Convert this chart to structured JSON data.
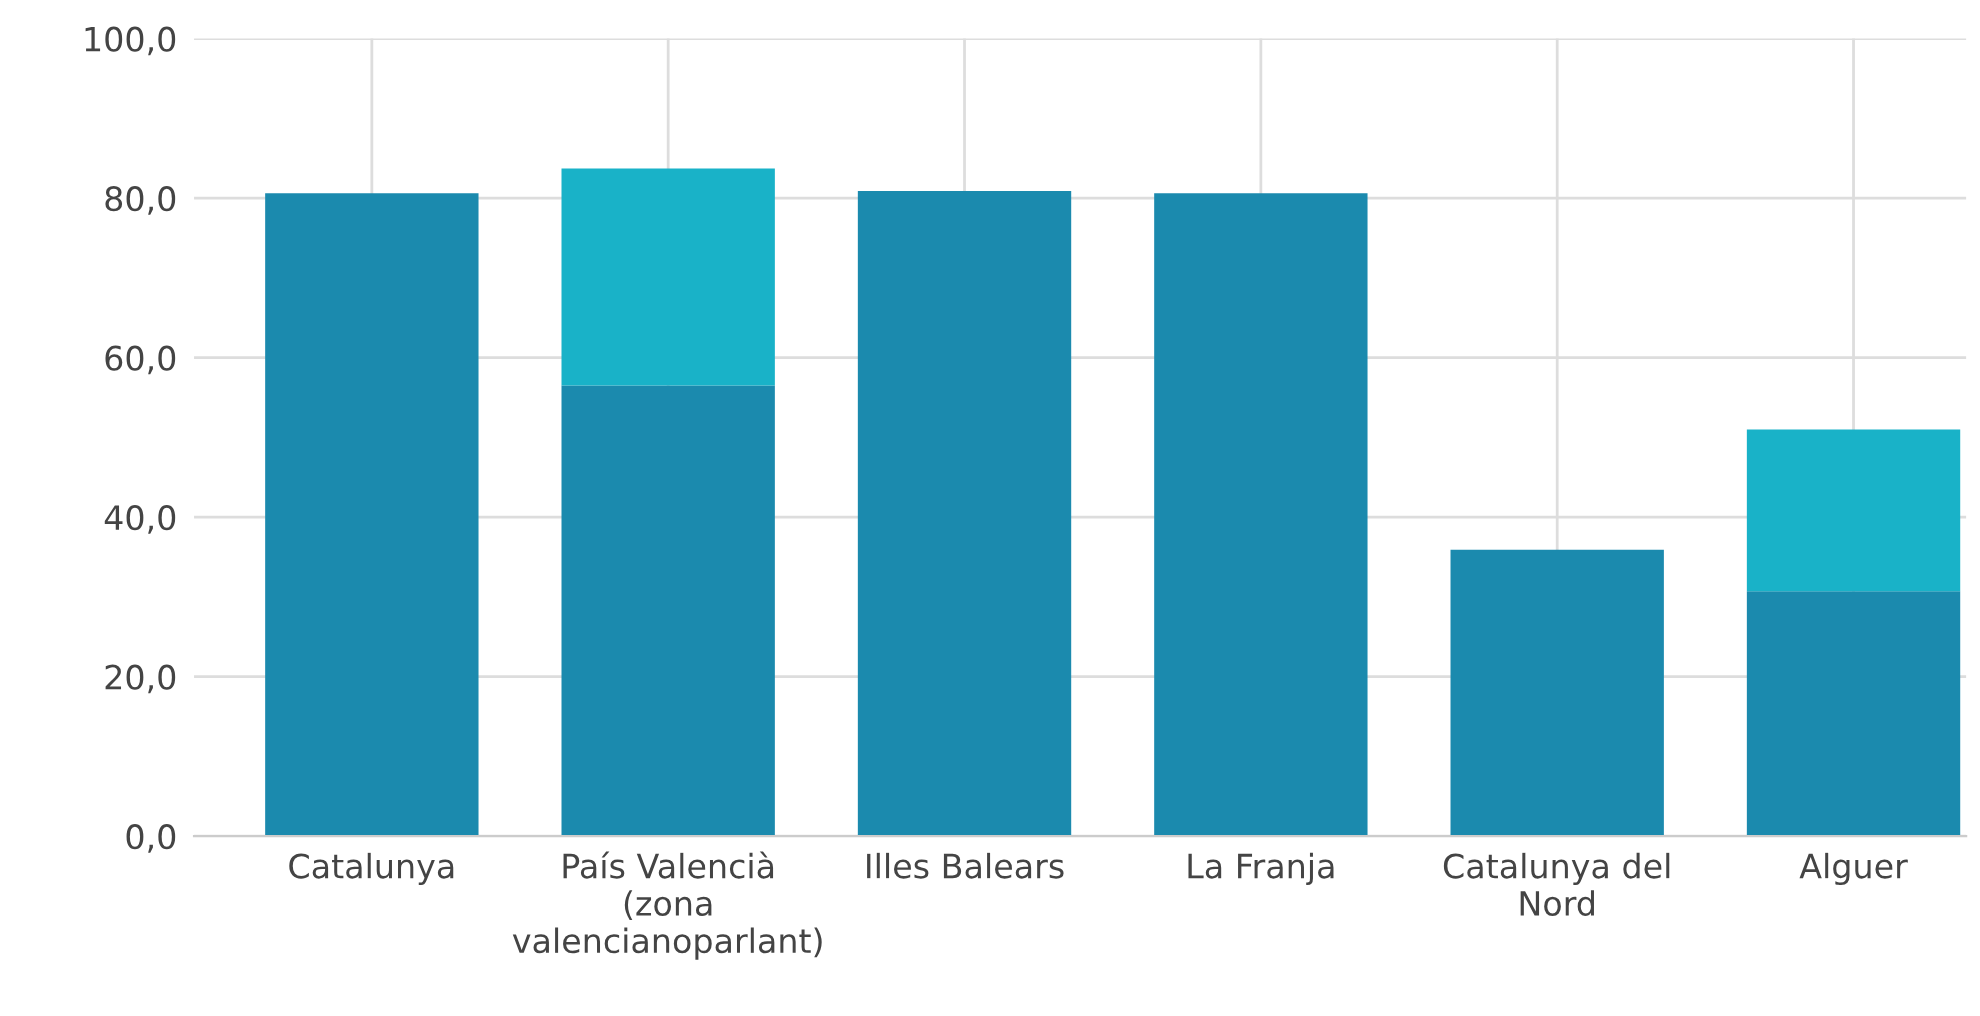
{
  "chart_data": {
    "type": "bar",
    "stacked": true,
    "categories": [
      "Catalunya",
      "País Valencià\n(zona\nvalencianoparlant)",
      "Illes Balears",
      "La Franja",
      "Catalunya del\nNord",
      "Alguer"
    ],
    "series": [
      {
        "color": "#1b8aae",
        "values": [
          80.6,
          56.5,
          80.9,
          80.6,
          35.9,
          30.7
        ]
      },
      {
        "color": "#19b2c8",
        "values": [
          null,
          27.2,
          null,
          null,
          null,
          20.3
        ]
      }
    ],
    "ylim": [
      0,
      100
    ],
    "yticks": [
      {
        "value": 0,
        "label": "0,0"
      },
      {
        "value": 20,
        "label": "20,0"
      },
      {
        "value": 40,
        "label": "40,0"
      },
      {
        "value": 60,
        "label": "60,0"
      },
      {
        "value": 80,
        "label": "80,0"
      },
      {
        "value": 100,
        "label": "100,0"
      }
    ],
    "grid": true
  }
}
